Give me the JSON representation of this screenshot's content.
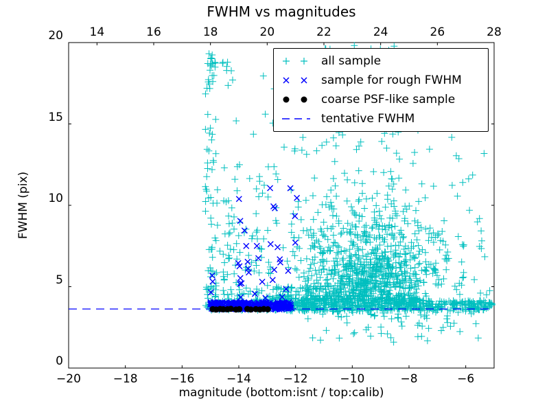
{
  "chart_data": {
    "type": "scatter",
    "title": "FWHM vs magnitudes",
    "xlabel": "magnitude (bottom:isnt / top:calib)",
    "ylabel": "FWHM (pix)",
    "xlim": [
      -20,
      -5
    ],
    "ylim": [
      0,
      20
    ],
    "x_ticks": [
      -20,
      -18,
      -16,
      -14,
      -12,
      -10,
      -8,
      -6
    ],
    "y_ticks": [
      0,
      5,
      10,
      15,
      20
    ],
    "top_axis": {
      "lim": [
        13,
        28
      ],
      "ticks": [
        14,
        16,
        18,
        20,
        22,
        24,
        26,
        28
      ]
    },
    "grid": false,
    "legend_position": "upper right",
    "tentative_fwhm": 3.63,
    "colors": {
      "all": "#00bfbf",
      "rough": "#0000ff",
      "psf": "#000000",
      "line": "#0000ff"
    },
    "legend": [
      {
        "label": "all sample",
        "marker": "plus",
        "series": "all"
      },
      {
        "label": "sample for rough FWHM",
        "marker": "cross",
        "series": "rough"
      },
      {
        "label": "coarse PSF-like sample",
        "marker": "dot",
        "series": "psf"
      },
      {
        "label": "tentative FWHM",
        "marker": "dashed-line",
        "series": "line"
      }
    ],
    "series": {
      "all_sample": {
        "marker": "plus",
        "clusters": [
          {
            "n": 85,
            "x": {
              "dist": "uniform",
              "a": -15.18,
              "b": -14.8
            },
            "y": {
              "dist": "pow",
              "a": 3.7,
              "b": 19.5,
              "p": 2.2
            }
          },
          {
            "n": 10,
            "x": {
              "dist": "uniform",
              "a": -15.15,
              "b": -14.85
            },
            "y": {
              "dist": "uniform",
              "a": 17.0,
              "b": 19.5
            }
          },
          {
            "n": 42,
            "x": {
              "dist": "uniform",
              "a": -14.55,
              "b": -13.95
            },
            "y": {
              "dist": "pow",
              "a": 4.2,
              "b": 12.5,
              "p": 1.8
            }
          },
          {
            "n": 8,
            "x": {
              "dist": "uniform",
              "a": -14.6,
              "b": -14.15
            },
            "y": {
              "dist": "uniform",
              "a": 17.2,
              "b": 19.3
            }
          },
          {
            "n": 28,
            "x": {
              "dist": "uniform",
              "a": -13.75,
              "b": -12.85
            },
            "y": {
              "dist": "pow",
              "a": 4.2,
              "b": 11.5,
              "p": 1.6
            }
          },
          {
            "n": 120,
            "x": {
              "dist": "uniform",
              "a": -15.02,
              "b": -12.6
            },
            "y": {
              "dist": "uniform",
              "a": 3.55,
              "b": 4.2
            }
          },
          {
            "n": 450,
            "x": {
              "dist": "uniform",
              "a": -12.6,
              "b": -7.5
            },
            "y": {
              "dist": "uniform",
              "a": 3.5,
              "b": 4.3
            }
          },
          {
            "n": 140,
            "x": {
              "dist": "uniform",
              "a": -7.5,
              "b": -5.05
            },
            "y": {
              "dist": "uniform",
              "a": 3.5,
              "b": 4.15
            }
          },
          {
            "n": 130,
            "x": {
              "dist": "uniform",
              "a": -12.9,
              "b": -9.3
            },
            "y": {
              "dist": "pow",
              "a": 4.2,
              "b": 5.0,
              "p": 1.5
            }
          },
          {
            "n": 520,
            "x": {
              "dist": "gauss",
              "mu": -9.35,
              "sigma": 1.2
            },
            "y": {
              "dist": "gauss",
              "mu": 5.5,
              "sigma": 0.95
            },
            "ymin": 3.7
          },
          {
            "n": 260,
            "x": {
              "dist": "gauss",
              "mu": -9.15,
              "sigma": 1.45
            },
            "y": {
              "dist": "gauss",
              "mu": 7.3,
              "sigma": 1.5
            },
            "ymin": 3.8
          },
          {
            "n": 150,
            "x": {
              "dist": "gauss",
              "mu": -9.6,
              "sigma": 1.7
            },
            "y": {
              "dist": "pow",
              "a": 8.0,
              "b": 15.5,
              "p": 1.6
            }
          },
          {
            "n": 26,
            "x": {
              "dist": "uniform",
              "a": -12.7,
              "b": -6.1
            },
            "y": {
              "dist": "uniform",
              "a": 14.0,
              "b": 19.6
            }
          },
          {
            "n": 7,
            "x": {
              "dist": "uniform",
              "a": -11.2,
              "b": -8.0
            },
            "y": {
              "dist": "uniform",
              "a": 19.5,
              "b": 20.0
            }
          },
          {
            "n": 65,
            "x": {
              "dist": "uniform",
              "a": -11.6,
              "b": -5.5
            },
            "y": {
              "dist": "pow",
              "a": 3.5,
              "b": 1.4,
              "p": 2.0
            }
          },
          {
            "n": 40,
            "x": {
              "dist": "uniform",
              "a": -14.85,
              "b": -12.6
            },
            "y": {
              "dist": "pow",
              "a": 4.5,
              "b": 18.5,
              "p": 2.4
            }
          },
          {
            "n": 22,
            "x": {
              "dist": "uniform",
              "a": -6.4,
              "b": -5.1
            },
            "y": {
              "dist": "pow",
              "a": 3.9,
              "b": 9.5,
              "p": 1.8
            }
          },
          {
            "n": 4,
            "x": {
              "dist": "uniform",
              "a": -7.0,
              "b": -5.6
            },
            "y": {
              "dist": "uniform",
              "a": 9.0,
              "b": 13.0
            }
          }
        ]
      },
      "rough_fwhm_sample": {
        "marker": "cross",
        "clusters": [
          {
            "n": 300,
            "x": {
              "dist": "uniform",
              "a": -15.02,
              "b": -12.15
            },
            "y": {
              "dist": "uniform",
              "a": 3.6,
              "b": 4.05
            }
          },
          {
            "n": 34,
            "x": {
              "dist": "uniform",
              "a": -14.1,
              "b": -11.95
            },
            "y": {
              "dist": "pow",
              "a": 4.3,
              "b": 11.3,
              "p": 1.3
            }
          },
          {
            "n": 3,
            "x": {
              "dist": "uniform",
              "a": -15.0,
              "b": -14.6
            },
            "y": {
              "dist": "uniform",
              "a": 4.3,
              "b": 5.8
            }
          }
        ]
      },
      "coarse_psf_sample": {
        "marker": "dot",
        "points": [
          [
            -14.92,
            3.62
          ],
          [
            -14.8,
            3.6
          ],
          [
            -14.66,
            3.63
          ],
          [
            -14.55,
            3.61
          ],
          [
            -14.4,
            3.61
          ],
          [
            -14.28,
            3.64
          ],
          [
            -14.1,
            3.6
          ],
          [
            -13.98,
            3.62
          ],
          [
            -13.7,
            3.63
          ],
          [
            -13.58,
            3.6
          ],
          [
            -13.4,
            3.62
          ],
          [
            -13.26,
            3.6
          ],
          [
            -13.12,
            3.63
          ],
          [
            -12.98,
            3.61
          ]
        ]
      }
    }
  }
}
